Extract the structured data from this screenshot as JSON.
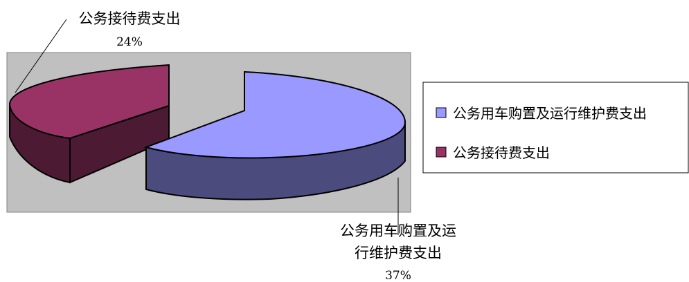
{
  "chart_data": {
    "type": "pie",
    "style": "3d-exploded",
    "slices": [
      {
        "label_line1": "公务用车购置及运",
        "label_line2": "行维护费支出",
        "legend": "公务用车购置及运行维护费支出",
        "percent_label": "37%",
        "color": "#9999FF",
        "side_color": "#4B4B7D"
      },
      {
        "label_line1": "公务接待费支出",
        "legend": "公务接待费支出",
        "percent_label": "24%",
        "color": "#993366",
        "side_color": "#4C1A33"
      }
    ],
    "plot_background": "#C0C0C0",
    "legend_position": "right"
  }
}
